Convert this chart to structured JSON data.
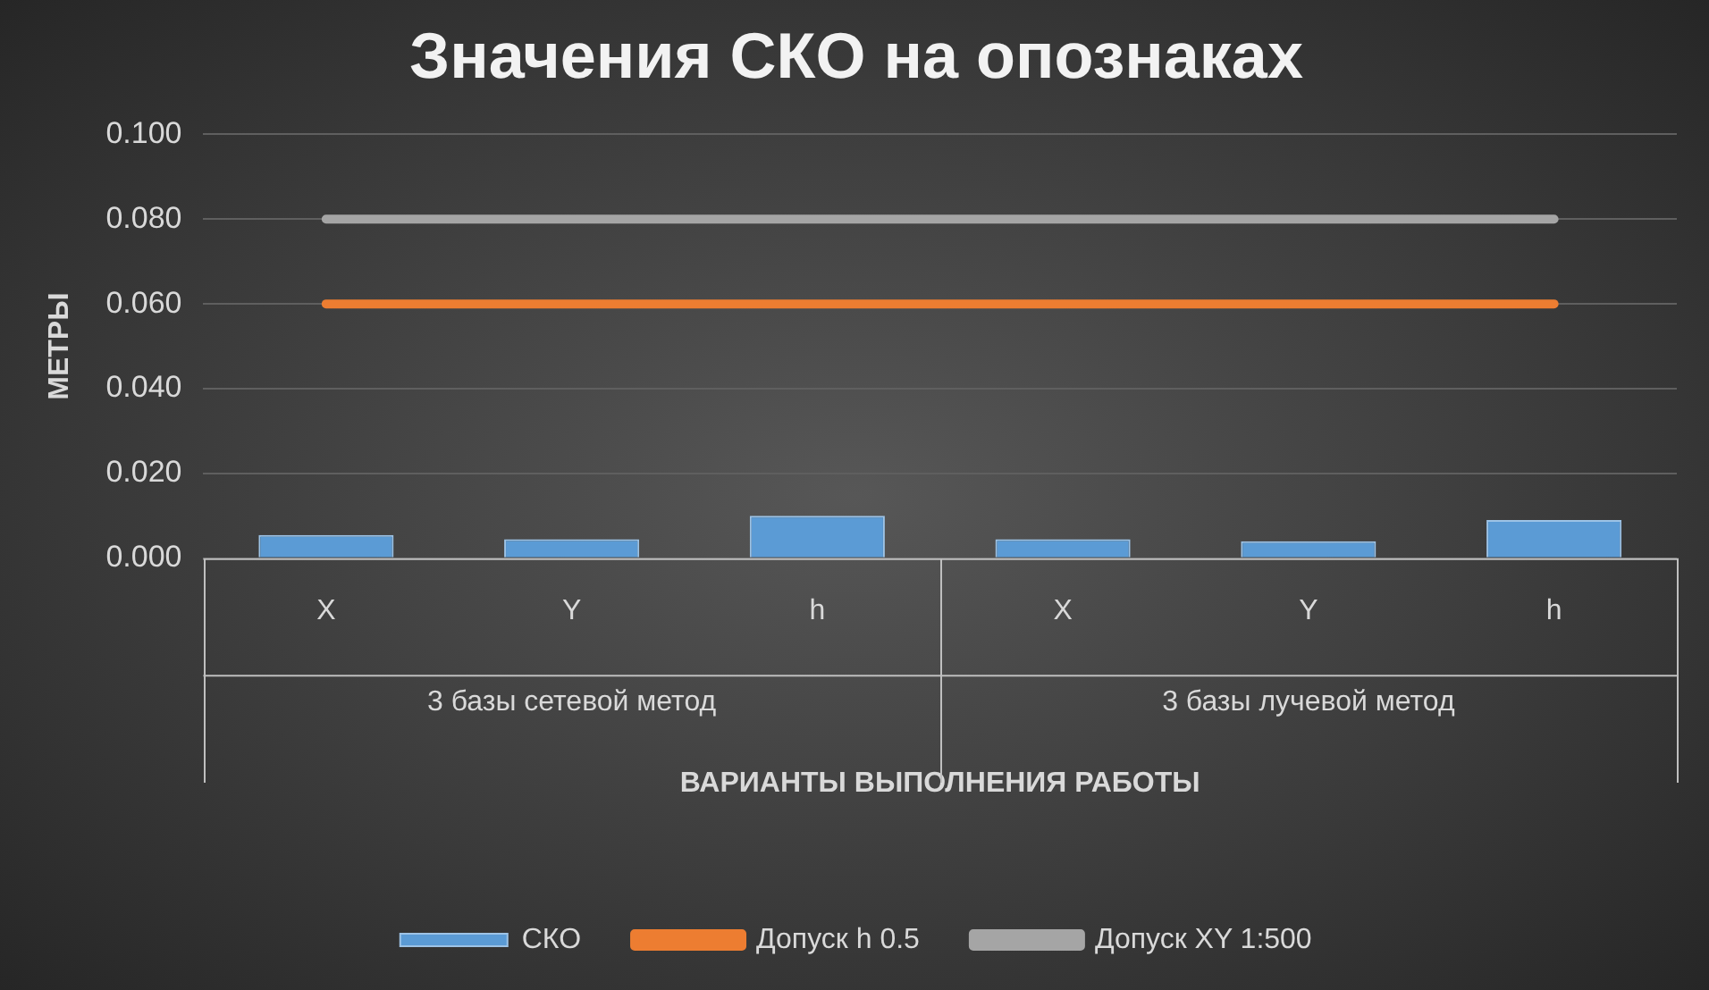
{
  "chart_data": {
    "type": "bar",
    "title": "Значения СКО на опознаках",
    "xlabel": "ВАРИАНТЫ ВЫПОЛНЕНИЯ РАБОТЫ",
    "ylabel": "МЕТРЫ",
    "categories": [
      "X",
      "Y",
      "h",
      "X",
      "Y",
      "h"
    ],
    "series": [
      {
        "name": "СКО",
        "color": "#5b9bd5",
        "values": [
          0.0055,
          0.0045,
          0.01,
          0.0045,
          0.004,
          0.009
        ]
      },
      {
        "name": "Допуск h 0.5",
        "type": "line",
        "color": "#ed7d31",
        "values": [
          0.06,
          0.06,
          0.06,
          0.06,
          0.06,
          0.06
        ]
      },
      {
        "name": "Допуск XY 1:500",
        "type": "line",
        "color": "#a5a5a5",
        "values": [
          0.08,
          0.08,
          0.08,
          0.08,
          0.08,
          0.08
        ]
      }
    ],
    "annotations": [
      "3 базы сетевой метод",
      "3 базы лучевой метод"
    ],
    "ylim": [
      0,
      0.1
    ],
    "yticks": [
      {
        "value": 0,
        "label": "0.000"
      },
      {
        "value": 0.02,
        "label": "0.020"
      },
      {
        "value": 0.04,
        "label": "0.040"
      },
      {
        "value": 0.06,
        "label": "0.060"
      },
      {
        "value": 0.08,
        "label": "0.080"
      },
      {
        "value": 0.1,
        "label": "0.100"
      }
    ],
    "grid": "y",
    "legend": "bottom",
    "marker": "none"
  }
}
